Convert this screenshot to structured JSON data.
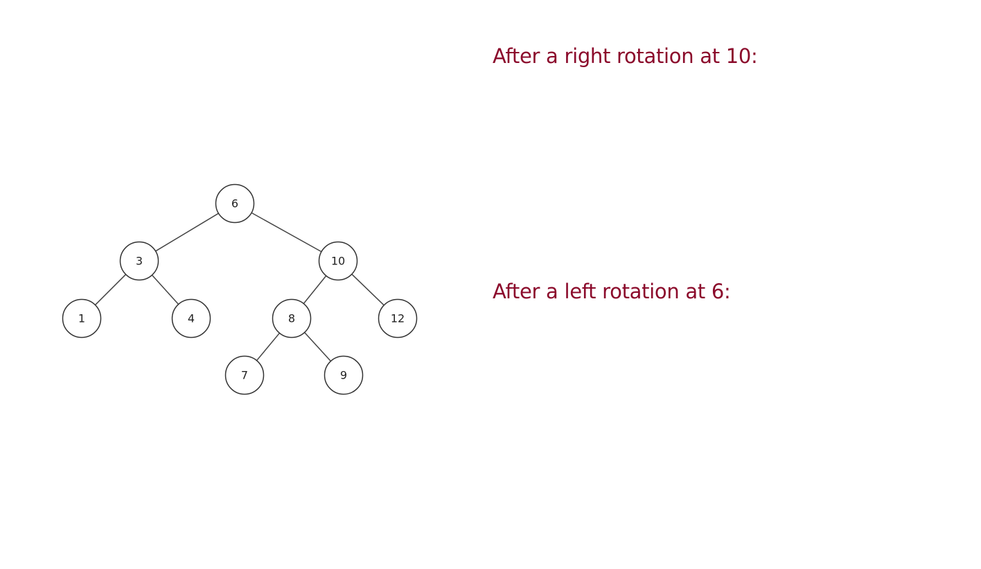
{
  "prompts": {
    "right_rotation": "After a right rotation at 10:",
    "left_rotation": "After a left rotation at 6:"
  },
  "colors": {
    "prompt_text": "#8b0a2b",
    "node_stroke": "#333333",
    "edge": "#444444"
  },
  "tree": {
    "nodes": [
      {
        "id": "n6",
        "label": "6"
      },
      {
        "id": "n3",
        "label": "3"
      },
      {
        "id": "n10",
        "label": "10"
      },
      {
        "id": "n1",
        "label": "1"
      },
      {
        "id": "n4",
        "label": "4"
      },
      {
        "id": "n8",
        "label": "8"
      },
      {
        "id": "n12",
        "label": "12"
      },
      {
        "id": "n7",
        "label": "7"
      },
      {
        "id": "n9",
        "label": "9"
      }
    ],
    "edges": [
      [
        "n6",
        "n3"
      ],
      [
        "n6",
        "n10"
      ],
      [
        "n3",
        "n1"
      ],
      [
        "n3",
        "n4"
      ],
      [
        "n10",
        "n8"
      ],
      [
        "n10",
        "n12"
      ],
      [
        "n8",
        "n7"
      ],
      [
        "n8",
        "n9"
      ]
    ]
  }
}
